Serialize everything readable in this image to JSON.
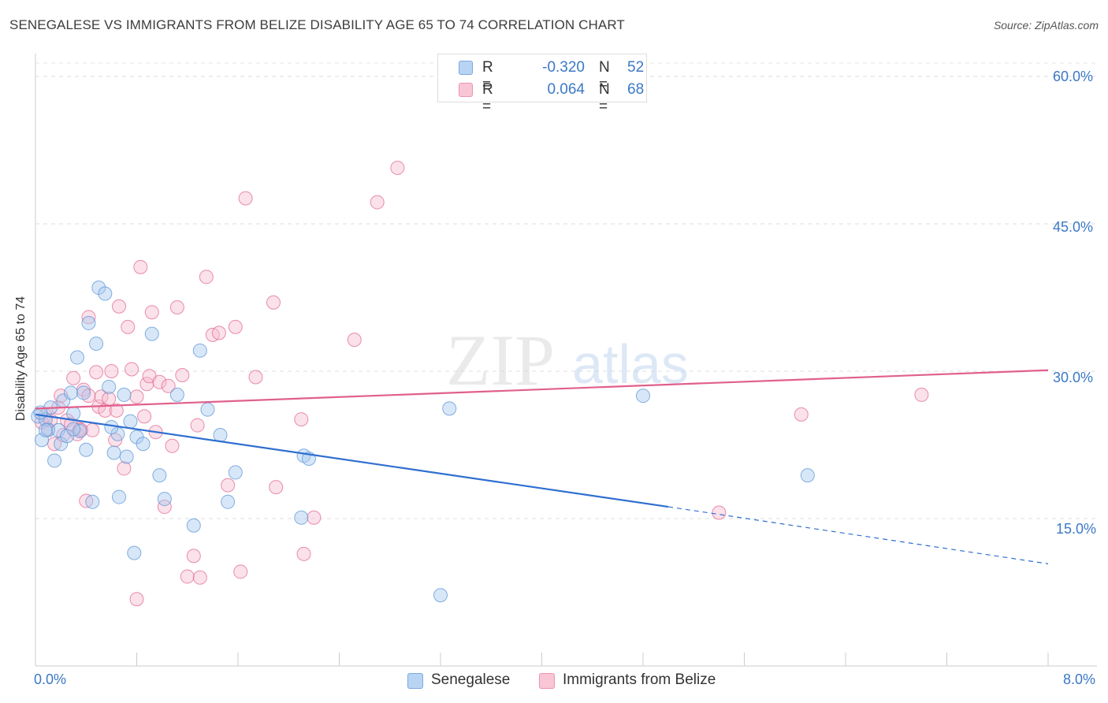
{
  "title": "SENEGALESE VS IMMIGRANTS FROM BELIZE DISABILITY AGE 65 TO 74 CORRELATION CHART",
  "source": "Source: ZipAtlas.com",
  "watermark": {
    "zip": "ZIP",
    "atlas": "atlas"
  },
  "legend": {
    "r_label": "R =",
    "n_label": "N =",
    "rows": [
      {
        "name": "Senegalese",
        "r": "-0.320",
        "n": "52",
        "color": "#9ec3ee"
      },
      {
        "name": "Immigrants from Belize",
        "r": "0.064",
        "n": "68",
        "color": "#f5b3c8"
      }
    ]
  },
  "chart_data": {
    "type": "scatter",
    "title": "SENEGALESE VS IMMIGRANTS FROM BELIZE DISABILITY AGE 65 TO 74 CORRELATION CHART",
    "xlabel": "",
    "ylabel": "Disability Age 65 to 74",
    "xlim": [
      0,
      8
    ],
    "ylim": [
      0,
      60
    ],
    "x_tick_labels": [
      "0.0%",
      "8.0%"
    ],
    "y_tick_labels": [
      "15.0%",
      "30.0%",
      "45.0%",
      "60.0%"
    ],
    "y_ticks": [
      15,
      30,
      45,
      60
    ],
    "legend_position": "top-center",
    "series": [
      {
        "name": "Senegalese",
        "color": "#5b95d8",
        "fill": "#a9c9f0",
        "r": -0.32,
        "n": 52,
        "trend": {
          "x0": 0.0,
          "y0": 25.6,
          "x1": 5.0,
          "y1": 16.2,
          "dash_to_x": 8.0,
          "dash_to_y": 10.4
        },
        "points": [
          [
            0.02,
            25.4
          ],
          [
            0.05,
            23.0
          ],
          [
            0.08,
            25.1
          ],
          [
            0.1,
            24.0
          ],
          [
            0.12,
            26.3
          ],
          [
            0.15,
            20.9
          ],
          [
            0.18,
            24.0
          ],
          [
            0.2,
            22.6
          ],
          [
            0.22,
            27.0
          ],
          [
            0.25,
            23.4
          ],
          [
            0.28,
            27.8
          ],
          [
            0.3,
            25.7
          ],
          [
            0.33,
            31.4
          ],
          [
            0.35,
            23.9
          ],
          [
            0.38,
            27.8
          ],
          [
            0.4,
            22.0
          ],
          [
            0.42,
            34.9
          ],
          [
            0.45,
            16.7
          ],
          [
            0.48,
            32.8
          ],
          [
            0.5,
            38.5
          ],
          [
            0.55,
            37.9
          ],
          [
            0.58,
            28.4
          ],
          [
            0.62,
            21.7
          ],
          [
            0.65,
            23.6
          ],
          [
            0.66,
            17.2
          ],
          [
            0.7,
            27.6
          ],
          [
            0.72,
            21.3
          ],
          [
            0.75,
            24.9
          ],
          [
            0.78,
            11.5
          ],
          [
            0.8,
            23.3
          ],
          [
            0.85,
            22.6
          ],
          [
            0.92,
            33.8
          ],
          [
            0.98,
            19.4
          ],
          [
            1.02,
            17.0
          ],
          [
            1.12,
            27.6
          ],
          [
            1.25,
            14.3
          ],
          [
            1.3,
            32.1
          ],
          [
            1.36,
            26.1
          ],
          [
            1.46,
            23.5
          ],
          [
            1.52,
            16.7
          ],
          [
            1.58,
            19.7
          ],
          [
            2.1,
            15.1
          ],
          [
            2.12,
            21.4
          ],
          [
            2.16,
            21.1
          ],
          [
            3.27,
            26.2
          ],
          [
            3.2,
            7.2
          ],
          [
            4.8,
            27.5
          ],
          [
            6.1,
            19.4
          ],
          [
            0.08,
            24.0
          ],
          [
            0.3,
            24.1
          ],
          [
            0.6,
            24.3
          ],
          [
            0.04,
            25.8
          ]
        ]
      },
      {
        "name": "Immigrants from Belize",
        "color": "#e26a93",
        "fill": "#f7bcd0",
        "r": 0.064,
        "n": 68,
        "trend": {
          "x0": 0.0,
          "y0": 26.2,
          "x1": 8.0,
          "y1": 30.1
        },
        "points": [
          [
            0.05,
            24.8
          ],
          [
            0.08,
            25.5
          ],
          [
            0.1,
            24.1
          ],
          [
            0.12,
            25.0
          ],
          [
            0.15,
            22.6
          ],
          [
            0.18,
            26.3
          ],
          [
            0.2,
            27.5
          ],
          [
            0.22,
            23.5
          ],
          [
            0.25,
            25.0
          ],
          [
            0.28,
            24.6
          ],
          [
            0.3,
            29.3
          ],
          [
            0.33,
            23.6
          ],
          [
            0.35,
            24.1
          ],
          [
            0.38,
            28.1
          ],
          [
            0.4,
            16.8
          ],
          [
            0.42,
            35.5
          ],
          [
            0.45,
            24.0
          ],
          [
            0.48,
            29.9
          ],
          [
            0.5,
            26.4
          ],
          [
            0.52,
            27.4
          ],
          [
            0.55,
            26.0
          ],
          [
            0.58,
            27.2
          ],
          [
            0.6,
            30.0
          ],
          [
            0.63,
            23.0
          ],
          [
            0.66,
            36.6
          ],
          [
            0.7,
            20.1
          ],
          [
            0.73,
            34.5
          ],
          [
            0.76,
            30.2
          ],
          [
            0.8,
            27.4
          ],
          [
            0.83,
            40.6
          ],
          [
            0.86,
            25.4
          ],
          [
            0.88,
            28.7
          ],
          [
            0.9,
            29.5
          ],
          [
            0.92,
            36.0
          ],
          [
            0.95,
            23.8
          ],
          [
            0.98,
            28.9
          ],
          [
            1.02,
            16.2
          ],
          [
            1.05,
            28.5
          ],
          [
            1.08,
            22.4
          ],
          [
            1.12,
            36.5
          ],
          [
            1.16,
            29.6
          ],
          [
            1.2,
            9.1
          ],
          [
            1.25,
            11.2
          ],
          [
            1.28,
            24.5
          ],
          [
            1.35,
            39.6
          ],
          [
            1.4,
            33.7
          ],
          [
            1.45,
            33.9
          ],
          [
            1.52,
            18.4
          ],
          [
            1.58,
            34.5
          ],
          [
            1.62,
            9.6
          ],
          [
            1.66,
            47.6
          ],
          [
            1.74,
            29.4
          ],
          [
            1.88,
            37.0
          ],
          [
            1.9,
            18.2
          ],
          [
            2.1,
            25.1
          ],
          [
            2.12,
            11.4
          ],
          [
            2.2,
            15.1
          ],
          [
            2.52,
            33.2
          ],
          [
            2.7,
            47.2
          ],
          [
            2.86,
            50.7
          ],
          [
            0.8,
            6.8
          ],
          [
            1.3,
            9.0
          ],
          [
            5.4,
            15.6
          ],
          [
            6.05,
            25.6
          ],
          [
            7.0,
            27.6
          ],
          [
            0.42,
            27.5
          ],
          [
            0.64,
            26.0
          ],
          [
            0.36,
            24.0
          ]
        ]
      }
    ]
  }
}
